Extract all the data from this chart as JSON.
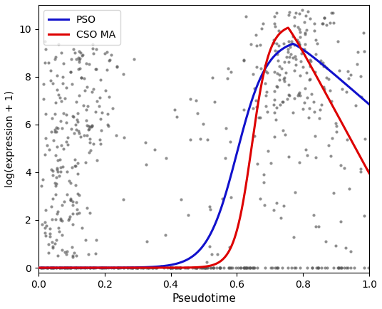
{
  "title": "",
  "xlabel": "Pseudotime",
  "ylabel": "log(expression + 1)",
  "xlim": [
    0.0,
    1.0
  ],
  "ylim": [
    -0.2,
    11.0
  ],
  "scatter_color": "#555555",
  "scatter_alpha": 0.65,
  "scatter_size": 9,
  "pso_color": "#1111cc",
  "cso_color": "#dd0000",
  "pso_label": "PSO",
  "cso_label": "CSO MA",
  "legend_loc": "upper left",
  "background_color": "#ffffff",
  "seed": 42,
  "figwidth": 5.36,
  "figheight": 4.34,
  "dpi": 100
}
